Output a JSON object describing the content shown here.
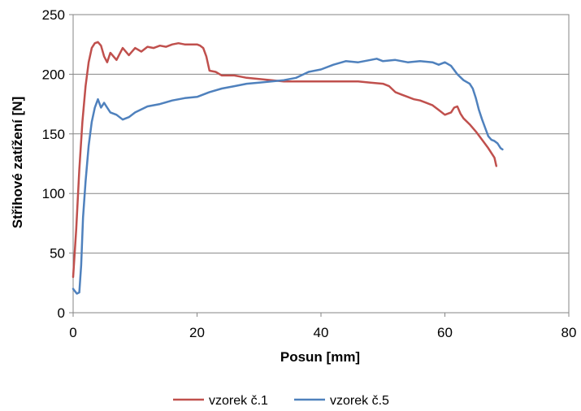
{
  "chart_data": {
    "type": "line",
    "xlabel": "Posun [mm]",
    "ylabel": "Střihové zatížení [N]",
    "xlim": [
      0,
      80
    ],
    "ylim": [
      0,
      250
    ],
    "xticks": [
      0,
      20,
      40,
      60,
      80
    ],
    "yticks": [
      0,
      50,
      100,
      150,
      200,
      250
    ],
    "grid": "horizontal",
    "legend": "bottom",
    "series": [
      {
        "name": "vzorek č.1",
        "color": "#c0504d",
        "x": [
          0.0,
          0.5,
          1.0,
          1.5,
          2.0,
          2.5,
          3.0,
          3.5,
          4.0,
          4.5,
          5.0,
          5.5,
          6.0,
          7.0,
          8.0,
          9.0,
          10.0,
          11.0,
          12.0,
          13.0,
          14.0,
          15.0,
          16.0,
          17.0,
          18.0,
          19.0,
          20.0,
          20.5,
          21.0,
          21.5,
          22.0,
          23.0,
          24.0,
          25.0,
          26.0,
          27.0,
          28.0,
          30.0,
          32.0,
          34.0,
          36.0,
          38.0,
          40.0,
          42.0,
          44.0,
          46.0,
          48.0,
          50.0,
          51.0,
          52.0,
          53.0,
          54.0,
          55.0,
          56.0,
          57.0,
          58.0,
          59.0,
          60.0,
          61.0,
          61.5,
          62.0,
          62.5,
          63.0,
          64.0,
          65.0,
          66.0,
          67.0,
          68.0,
          68.3
        ],
        "y": [
          30,
          70,
          120,
          160,
          190,
          210,
          222,
          226,
          227,
          224,
          215,
          210,
          218,
          212,
          222,
          216,
          222,
          219,
          223,
          222,
          224,
          223,
          225,
          226,
          225,
          225,
          225,
          224,
          222,
          215,
          203,
          202,
          199,
          199,
          199,
          198,
          197,
          196,
          195,
          194,
          194,
          194,
          194,
          194,
          194,
          194,
          193,
          192,
          190,
          185,
          183,
          181,
          179,
          178,
          176,
          174,
          170,
          166,
          168,
          172,
          173,
          167,
          163,
          158,
          152,
          145,
          138,
          130,
          123
        ]
      },
      {
        "name": "vzorek č.5",
        "color": "#4f81bd",
        "x": [
          0.0,
          0.3,
          0.6,
          1.0,
          1.3,
          1.6,
          2.0,
          2.5,
          3.0,
          3.5,
          4.0,
          4.5,
          5.0,
          5.5,
          6.0,
          7.0,
          8.0,
          9.0,
          10.0,
          12.0,
          14.0,
          16.0,
          18.0,
          20.0,
          22.0,
          24.0,
          26.0,
          28.0,
          30.0,
          32.0,
          34.0,
          36.0,
          38.0,
          40.0,
          42.0,
          44.0,
          46.0,
          48.0,
          49.0,
          50.0,
          52.0,
          54.0,
          56.0,
          58.0,
          59.0,
          60.0,
          61.0,
          62.0,
          63.0,
          64.0,
          64.5,
          65.0,
          65.5,
          66.0,
          66.5,
          67.0,
          67.5,
          68.0,
          68.5,
          69.0,
          69.3
        ],
        "y": [
          20,
          18,
          16,
          17,
          40,
          80,
          110,
          140,
          160,
          172,
          179,
          172,
          176,
          172,
          168,
          166,
          162,
          164,
          168,
          173,
          175,
          178,
          180,
          181,
          185,
          188,
          190,
          192,
          193,
          194,
          195,
          197,
          202,
          204,
          208,
          211,
          210,
          212,
          213,
          211,
          212,
          210,
          211,
          210,
          208,
          210,
          207,
          200,
          195,
          192,
          188,
          180,
          170,
          162,
          155,
          148,
          145,
          144,
          142,
          138,
          137
        ]
      }
    ]
  }
}
